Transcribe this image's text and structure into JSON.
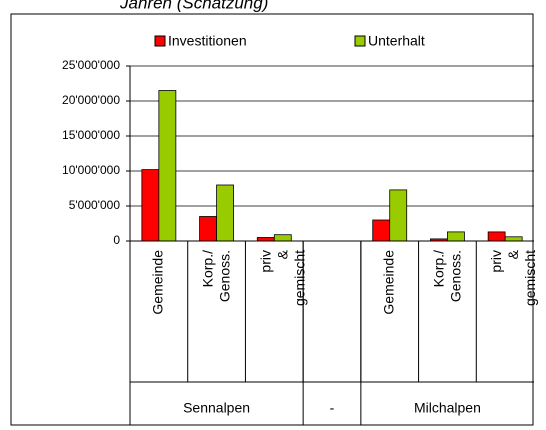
{
  "chart_data": {
    "type": "bar",
    "title": "Jahren (Schätzung)",
    "categories": [
      "Gemeinde",
      "Korp./ Genoss.",
      "priv & gemischt",
      null,
      "Gemeinde",
      "Korp./ Genoss.",
      "priv & gemischt"
    ],
    "groups": [
      {
        "name": "Sennalpen",
        "count": 3
      },
      {
        "name": "-",
        "count": 1
      },
      {
        "name": "Milchalpen",
        "count": 3
      }
    ],
    "series": [
      {
        "name": "Investitionen",
        "color": "#ff0000",
        "values": [
          10200000,
          3500000,
          500000,
          null,
          3000000,
          300000,
          1300000
        ]
      },
      {
        "name": "Unterhalt",
        "color": "#99cc00",
        "values": [
          21500000,
          8000000,
          900000,
          null,
          7300000,
          1300000,
          600000
        ]
      }
    ],
    "ylim": [
      0,
      25000000
    ],
    "yticks": [
      0,
      {
        "value": 5000000,
        "label": "5'000'000"
      },
      {
        "value": 10000000,
        "label": "10'000'000"
      },
      {
        "value": 15000000,
        "label": "15'000'000"
      },
      {
        "value": 20000000,
        "label": "20'000'000"
      },
      {
        "value": 25000000,
        "label": "25'000'000"
      }
    ],
    "grid": true
  }
}
